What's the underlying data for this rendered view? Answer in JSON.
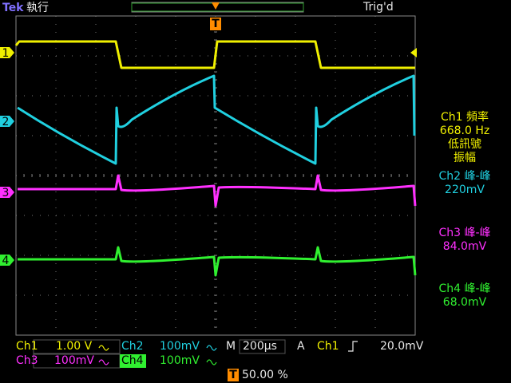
{
  "header": {
    "brand": "Tek",
    "status": "執行",
    "trigger_state": "Trig'd",
    "trigger_marker": "T"
  },
  "channel_markers": [
    "1",
    "2",
    "3",
    "4"
  ],
  "measurements": [
    {
      "lines": [
        "Ch1 頻率",
        "668.0 Hz",
        "低訊號",
        "振幅"
      ]
    },
    {
      "lines": [
        "Ch2 峰-峰",
        "220mV"
      ]
    },
    {
      "lines": [
        "Ch3 峰-峰",
        "84.0mV"
      ]
    },
    {
      "lines": [
        "Ch4 峰-峰",
        "68.0mV"
      ]
    }
  ],
  "bottom_bar": {
    "ch1_label": "Ch1",
    "ch1_scale": "1.00 V",
    "ch2_label": "Ch2",
    "ch2_scale": "100mV",
    "timebase_label": "M",
    "timebase": "200µs",
    "trigger_mode": "A",
    "trigger_source": "Ch1",
    "trigger_level": "20.0mV",
    "ch3_label": "Ch3",
    "ch3_scale": "100mV",
    "ch4_label": "Ch4",
    "ch4_scale": "100mV",
    "position_marker": "T",
    "position": "50.00 %"
  }
}
